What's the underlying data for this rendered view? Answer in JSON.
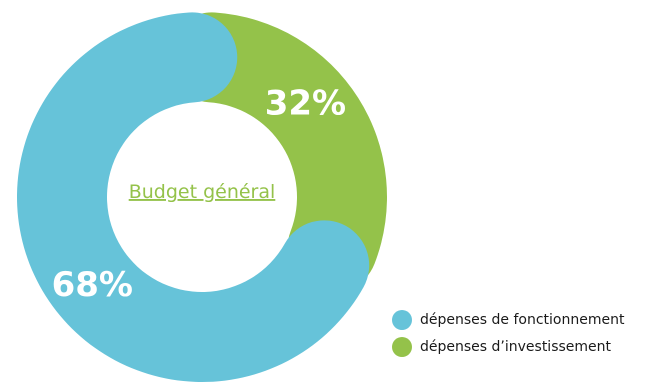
{
  "chart_data": {
    "type": "pie",
    "variant": "donut",
    "center_label": "Budget général",
    "slices": [
      {
        "label": "dépenses de fonctionnement",
        "value": 68,
        "value_label": "68%",
        "color": "#66c3d9"
      },
      {
        "label": "dépenses d’investissement",
        "value": 32,
        "value_label": "32%",
        "color": "#94c24a"
      }
    ],
    "legend_placement": "bottom-right"
  },
  "colors": {
    "center_label": "#94c24a"
  }
}
